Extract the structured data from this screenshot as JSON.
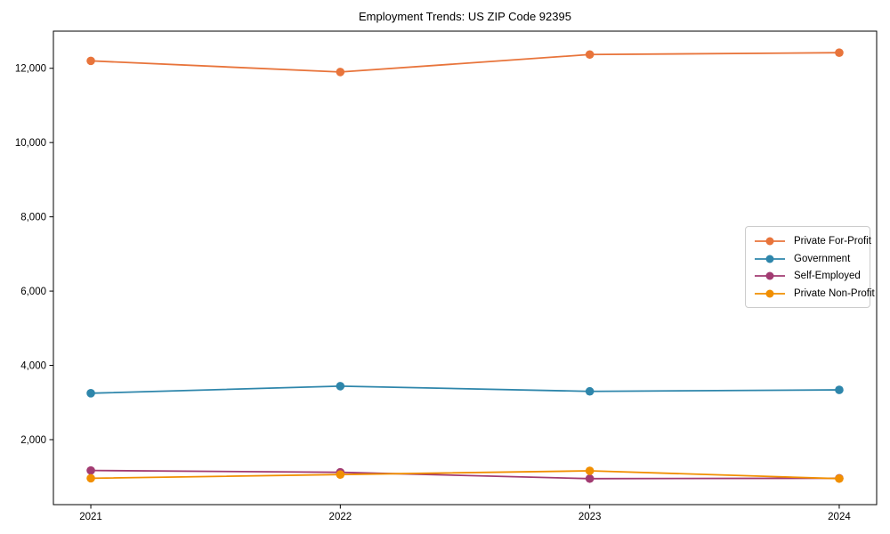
{
  "chart_data": {
    "type": "line",
    "title": "Employment Trends: US ZIP Code 92395",
    "xlabel": "",
    "ylabel": "",
    "x": [
      2021,
      2022,
      2023,
      2024
    ],
    "xticks": [
      2021,
      2022,
      2023,
      2024
    ],
    "yticks": [
      2000,
      4000,
      6000,
      8000,
      10000,
      12000
    ],
    "xlim": [
      2020.85,
      2024.15
    ],
    "ylim": [
      250,
      13000
    ],
    "grid": false,
    "legend_position": "center-right",
    "marker": "circle",
    "series": [
      {
        "name": "Private For-Profit",
        "color": "#E8743B",
        "values": [
          12200,
          11900,
          12370,
          12420
        ]
      },
      {
        "name": "Government",
        "color": "#2E86AB",
        "values": [
          3250,
          3440,
          3300,
          3340
        ]
      },
      {
        "name": "Self-Employed",
        "color": "#A23B72",
        "values": [
          1170,
          1120,
          950,
          960
        ]
      },
      {
        "name": "Private Non-Profit",
        "color": "#F18F01",
        "values": [
          960,
          1060,
          1160,
          950
        ]
      }
    ]
  }
}
